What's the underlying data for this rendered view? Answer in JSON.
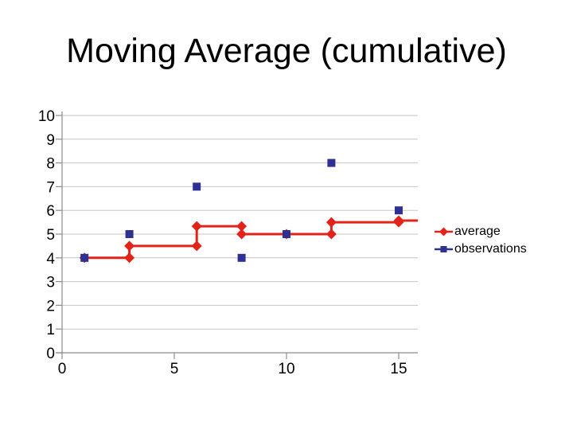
{
  "slide": {
    "background_color": "#ffffff"
  },
  "chart_data": {
    "type": "line",
    "title": "Moving Average (cumulative)",
    "xlabel": "",
    "ylabel": "",
    "x_ticks": [
      0,
      5,
      10,
      15
    ],
    "x_range": [
      0,
      15.85
    ],
    "y_ticks": [
      0,
      1,
      2,
      3,
      4,
      5,
      6,
      7,
      8,
      9,
      10
    ],
    "y_range": [
      0,
      10
    ],
    "grid": "horizontal",
    "legend_position": "right",
    "series": [
      {
        "name": "average",
        "type": "step_line_with_markers",
        "marker": "diamond",
        "color": "#e2231a",
        "points": [
          [
            1,
            4
          ],
          [
            3,
            4
          ],
          [
            3,
            4.5
          ],
          [
            6,
            4.5
          ],
          [
            6,
            5.333
          ],
          [
            8,
            5.333
          ],
          [
            8,
            5
          ],
          [
            10,
            5
          ],
          [
            12,
            5
          ],
          [
            12,
            5.5
          ],
          [
            15,
            5.5
          ],
          [
            15,
            5.571
          ]
        ],
        "line_extends_to_x": 15.85
      },
      {
        "name": "observations",
        "type": "scatter",
        "marker": "square",
        "color": "#2e3192",
        "points": [
          [
            1,
            4
          ],
          [
            3,
            5
          ],
          [
            6,
            7
          ],
          [
            8,
            4
          ],
          [
            10,
            5
          ],
          [
            12,
            8
          ],
          [
            15,
            6
          ]
        ]
      }
    ],
    "colors": {
      "gridline": "#c6c6c6",
      "axis": "#8c8c8c",
      "tick_label": "#000000"
    }
  }
}
